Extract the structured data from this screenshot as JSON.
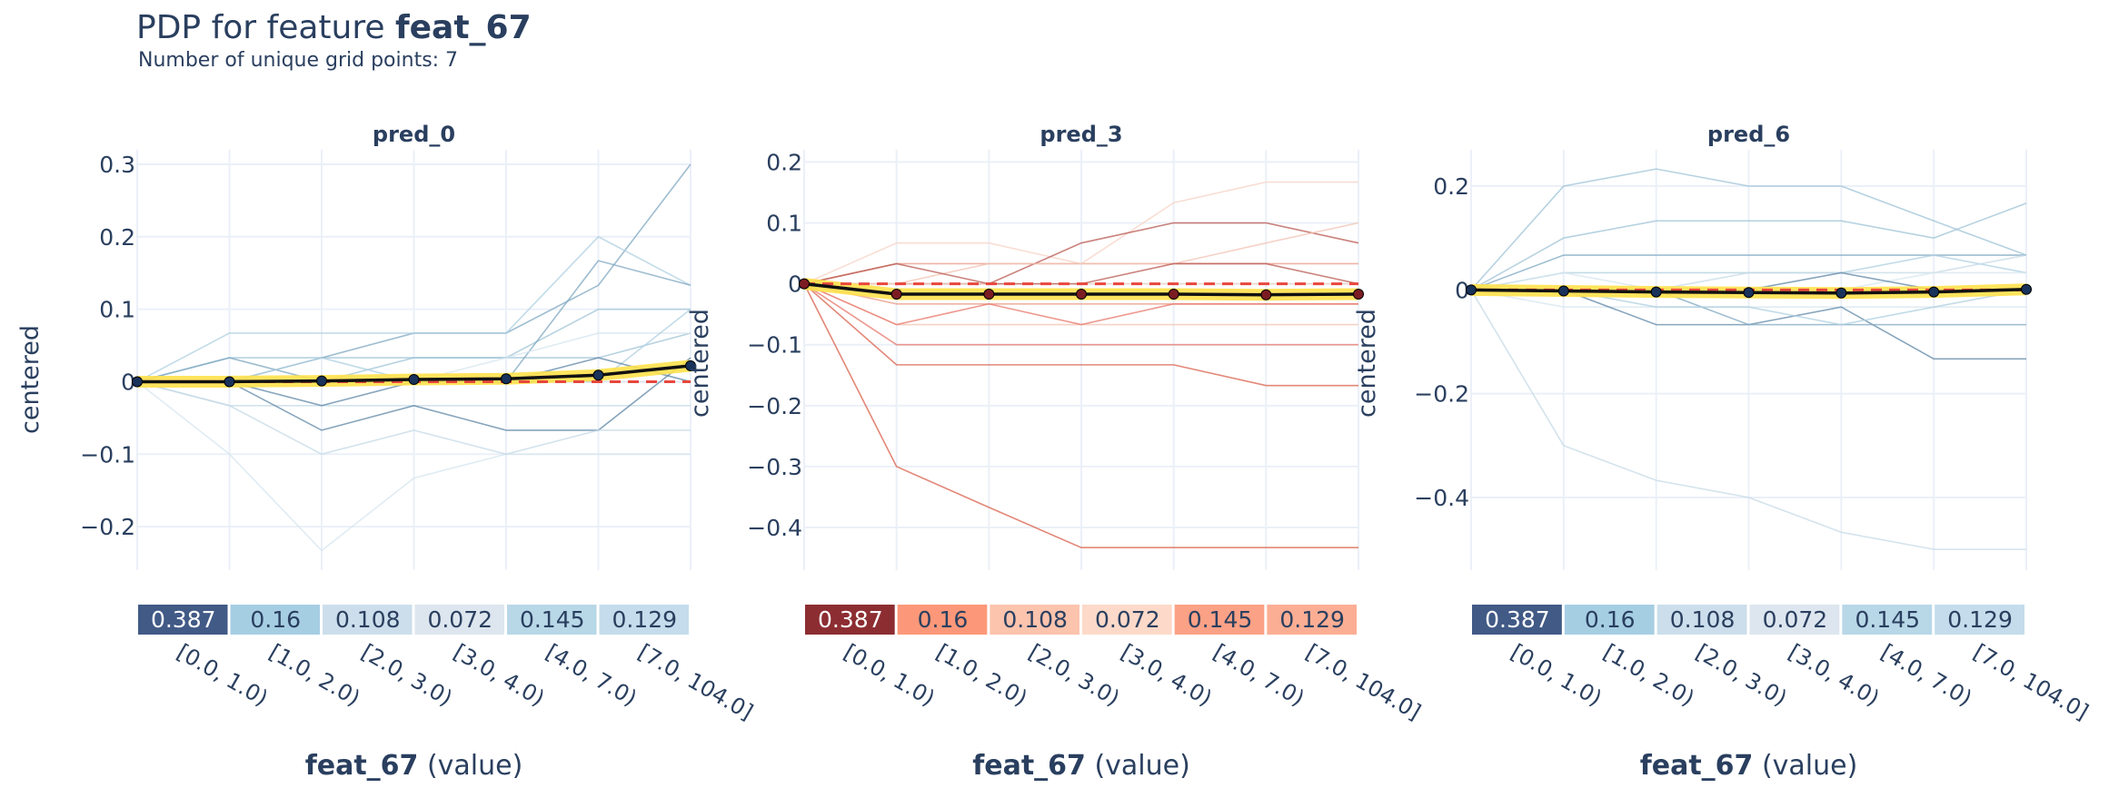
{
  "figure": {
    "title_prefix": "PDP for feature ",
    "title_feature": "feat_67",
    "subtitle": "Number of unique grid points: 7"
  },
  "chart_data": [
    {
      "type": "line",
      "title": "pred_0",
      "ylabel": "centered",
      "xlabel_feature": "feat_67",
      "xlabel_suffix": " (value)",
      "ylim": [
        -0.26,
        0.32
      ],
      "yticks": [
        0.3,
        0.2,
        0.1,
        0,
        -0.1,
        -0.2
      ],
      "ytick_labels": [
        "0.3",
        "0.2",
        "0.1",
        "0",
        "−0.1",
        "−0.2"
      ],
      "x": [
        0,
        1,
        2,
        3,
        4,
        5,
        6
      ],
      "categories": [
        "[0.0, 1.0)",
        "[1.0, 2.0)",
        "[2.0, 3.0)",
        "[3.0, 4.0)",
        "[4.0, 7.0)",
        "[7.0, 104.0]"
      ],
      "bin_counts": [
        "0.387",
        "0.16",
        "0.108",
        "0.072",
        "0.145",
        "0.129"
      ],
      "bin_values": [
        0.387,
        0.16,
        0.108,
        0.072,
        0.145,
        0.129
      ],
      "scheme": "blue",
      "pdp": [
        0,
        0.0,
        0.001,
        0.003,
        0.004,
        0.009,
        0.022
      ],
      "ice_lines": [
        [
          0,
          0.033,
          0.033,
          0.033,
          0.033,
          0.033,
          0.067
        ],
        [
          0,
          -0.033,
          -0.033,
          -0.033,
          -0.033,
          -0.033,
          -0.033
        ],
        [
          0,
          0.0,
          0.033,
          0.067,
          0.067,
          0.133,
          0.3
        ],
        [
          0,
          -0.1,
          -0.233,
          -0.133,
          -0.1,
          -0.1,
          -0.1
        ],
        [
          0,
          0.067,
          0.067,
          0.067,
          0.067,
          0.2,
          0.133
        ],
        [
          0,
          0.0,
          -0.067,
          -0.033,
          -0.067,
          -0.067,
          0.033
        ],
        [
          0,
          0.0,
          0.0,
          0.033,
          0.033,
          0.1,
          0.1
        ],
        [
          0,
          -0.033,
          -0.1,
          -0.067,
          -0.1,
          -0.067,
          -0.067
        ],
        [
          0,
          0.033,
          0.0,
          0.0,
          0.0,
          0.167,
          0.133
        ],
        [
          0,
          0.0,
          0.0,
          0.0,
          0.033,
          0.067,
          0.067
        ],
        [
          0,
          0.0,
          0.033,
          0.0,
          0.0,
          0.0,
          0.1
        ],
        [
          0,
          0.0,
          -0.033,
          0.0,
          0.0,
          0.033,
          0.0
        ]
      ]
    },
    {
      "type": "line",
      "title": "pred_3",
      "ylabel": "centered",
      "xlabel_feature": "feat_67",
      "xlabel_suffix": " (value)",
      "ylim": [
        -0.47,
        0.22
      ],
      "yticks": [
        0.2,
        0.1,
        0,
        -0.1,
        -0.2,
        -0.3,
        -0.4
      ],
      "ytick_labels": [
        "0.2",
        "0.1",
        "0",
        "−0.1",
        "−0.2",
        "−0.3",
        "−0.4"
      ],
      "x": [
        0,
        1,
        2,
        3,
        4,
        5,
        6
      ],
      "categories": [
        "[0.0, 1.0)",
        "[1.0, 2.0)",
        "[2.0, 3.0)",
        "[3.0, 4.0)",
        "[4.0, 7.0)",
        "[7.0, 104.0]"
      ],
      "bin_counts": [
        "0.387",
        "0.16",
        "0.108",
        "0.072",
        "0.145",
        "0.129"
      ],
      "bin_values": [
        0.387,
        0.16,
        0.108,
        0.072,
        0.145,
        0.129
      ],
      "scheme": "red",
      "pdp": [
        0,
        -0.017,
        -0.017,
        -0.017,
        -0.017,
        -0.018,
        -0.017
      ],
      "ice_lines": [
        [
          0,
          0.033,
          0.033,
          0.033,
          0.033,
          0.033,
          0.033
        ],
        [
          0,
          -0.067,
          -0.067,
          -0.067,
          -0.067,
          -0.067,
          -0.067
        ],
        [
          0,
          -0.3,
          -0.367,
          -0.433,
          -0.433,
          -0.433,
          -0.433
        ],
        [
          0,
          0.067,
          0.067,
          0.033,
          0.133,
          0.167,
          0.167
        ],
        [
          0,
          -0.1,
          -0.1,
          -0.1,
          -0.1,
          -0.1,
          -0.1
        ],
        [
          0,
          0.0,
          0.0,
          0.067,
          0.1,
          0.1,
          0.067
        ],
        [
          0,
          -0.033,
          -0.033,
          -0.033,
          -0.033,
          -0.033,
          -0.033
        ],
        [
          0,
          0.0,
          0.033,
          0.033,
          0.033,
          0.067,
          0.1
        ],
        [
          0,
          -0.133,
          -0.133,
          -0.133,
          -0.133,
          -0.167,
          -0.167
        ],
        [
          0,
          0.0,
          0.0,
          0.0,
          0.0,
          0.0,
          0.0
        ],
        [
          0,
          -0.067,
          -0.033,
          -0.067,
          -0.033,
          -0.033,
          -0.033
        ],
        [
          0,
          0.033,
          0.0,
          0.0,
          0.033,
          0.033,
          0.0
        ]
      ]
    },
    {
      "type": "line",
      "title": "pred_6",
      "ylabel": "centered",
      "xlabel_feature": "feat_67",
      "xlabel_suffix": " (value)",
      "ylim": [
        -0.54,
        0.27
      ],
      "yticks": [
        0.2,
        0,
        -0.2,
        -0.4
      ],
      "ytick_labels": [
        "0.2",
        "0",
        "−0.2",
        "−0.4"
      ],
      "x": [
        0,
        1,
        2,
        3,
        4,
        5,
        6
      ],
      "categories": [
        "[0.0, 1.0)",
        "[1.0, 2.0)",
        "[2.0, 3.0)",
        "[3.0, 4.0)",
        "[4.0, 7.0)",
        "[7.0, 104.0]"
      ],
      "bin_counts": [
        "0.387",
        "0.16",
        "0.108",
        "0.072",
        "0.145",
        "0.129"
      ],
      "bin_values": [
        0.387,
        0.16,
        0.108,
        0.072,
        0.145,
        0.129
      ],
      "scheme": "blue",
      "pdp": [
        0,
        -0.002,
        -0.004,
        -0.005,
        -0.006,
        -0.004,
        0.001
      ],
      "ice_lines": [
        [
          0,
          0.2,
          0.233,
          0.2,
          0.2,
          0.133,
          0.067
        ],
        [
          0,
          -0.3,
          -0.367,
          -0.4,
          -0.467,
          -0.5,
          -0.5
        ],
        [
          0,
          0.067,
          0.067,
          0.067,
          0.067,
          0.067,
          0.067
        ],
        [
          0,
          -0.033,
          -0.033,
          -0.033,
          -0.033,
          -0.033,
          -0.033
        ],
        [
          0,
          0.033,
          0.033,
          0.033,
          0.033,
          0.067,
          0.033
        ],
        [
          0,
          0.0,
          -0.067,
          -0.067,
          -0.033,
          -0.133,
          -0.133
        ],
        [
          0,
          0.1,
          0.133,
          0.133,
          0.133,
          0.1,
          0.167
        ],
        [
          0,
          0.0,
          0.0,
          0.033,
          0.033,
          0.033,
          0.067
        ],
        [
          0,
          0.0,
          0.0,
          -0.067,
          -0.067,
          -0.067,
          -0.067
        ],
        [
          0,
          0.033,
          0.0,
          0.0,
          0.0,
          0.033,
          0.033
        ],
        [
          0,
          0.0,
          -0.033,
          -0.033,
          -0.067,
          -0.033,
          0.0
        ],
        [
          0,
          0.0,
          0.0,
          0.0,
          0.033,
          0.0,
          0.0
        ]
      ]
    }
  ]
}
